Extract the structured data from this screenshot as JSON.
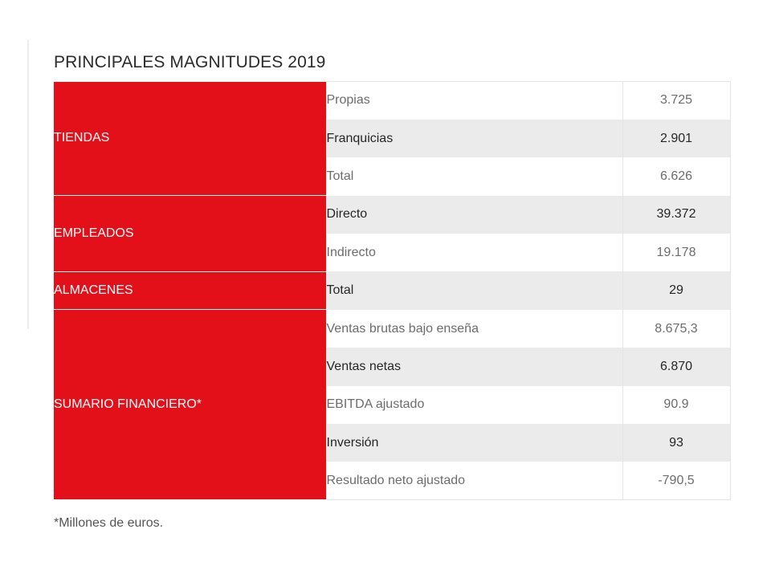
{
  "title": "PRINCIPALES MAGNITUDES 2019",
  "categories": {
    "tiendas": "TIENDAS",
    "empleados": "EMPLEADOS",
    "almacenes": "ALMACENES",
    "sumario": "SUMARIO FINANCIERO*"
  },
  "rows": [
    {
      "item": "Propias",
      "value": "3.725"
    },
    {
      "item": "Franquicias",
      "value": "2.901"
    },
    {
      "item": "Total",
      "value": "6.626"
    },
    {
      "item": "Directo",
      "value": "39.372"
    },
    {
      "item": "Indirecto",
      "value": "19.178"
    },
    {
      "item": "Total",
      "value": "29"
    },
    {
      "item": "Ventas brutas bajo enseña",
      "value": "8.675,3"
    },
    {
      "item": "Ventas netas",
      "value": "6.870"
    },
    {
      "item": "EBITDA ajustado",
      "value": "90.9"
    },
    {
      "item": "Inversión",
      "value": "93"
    },
    {
      "item": "Resultado neto ajustado",
      "value": "-790,5"
    }
  ],
  "footnote": "*Millones de euros.",
  "colors": {
    "accent": "#e30f19",
    "row_shade": "#ebebeb"
  }
}
